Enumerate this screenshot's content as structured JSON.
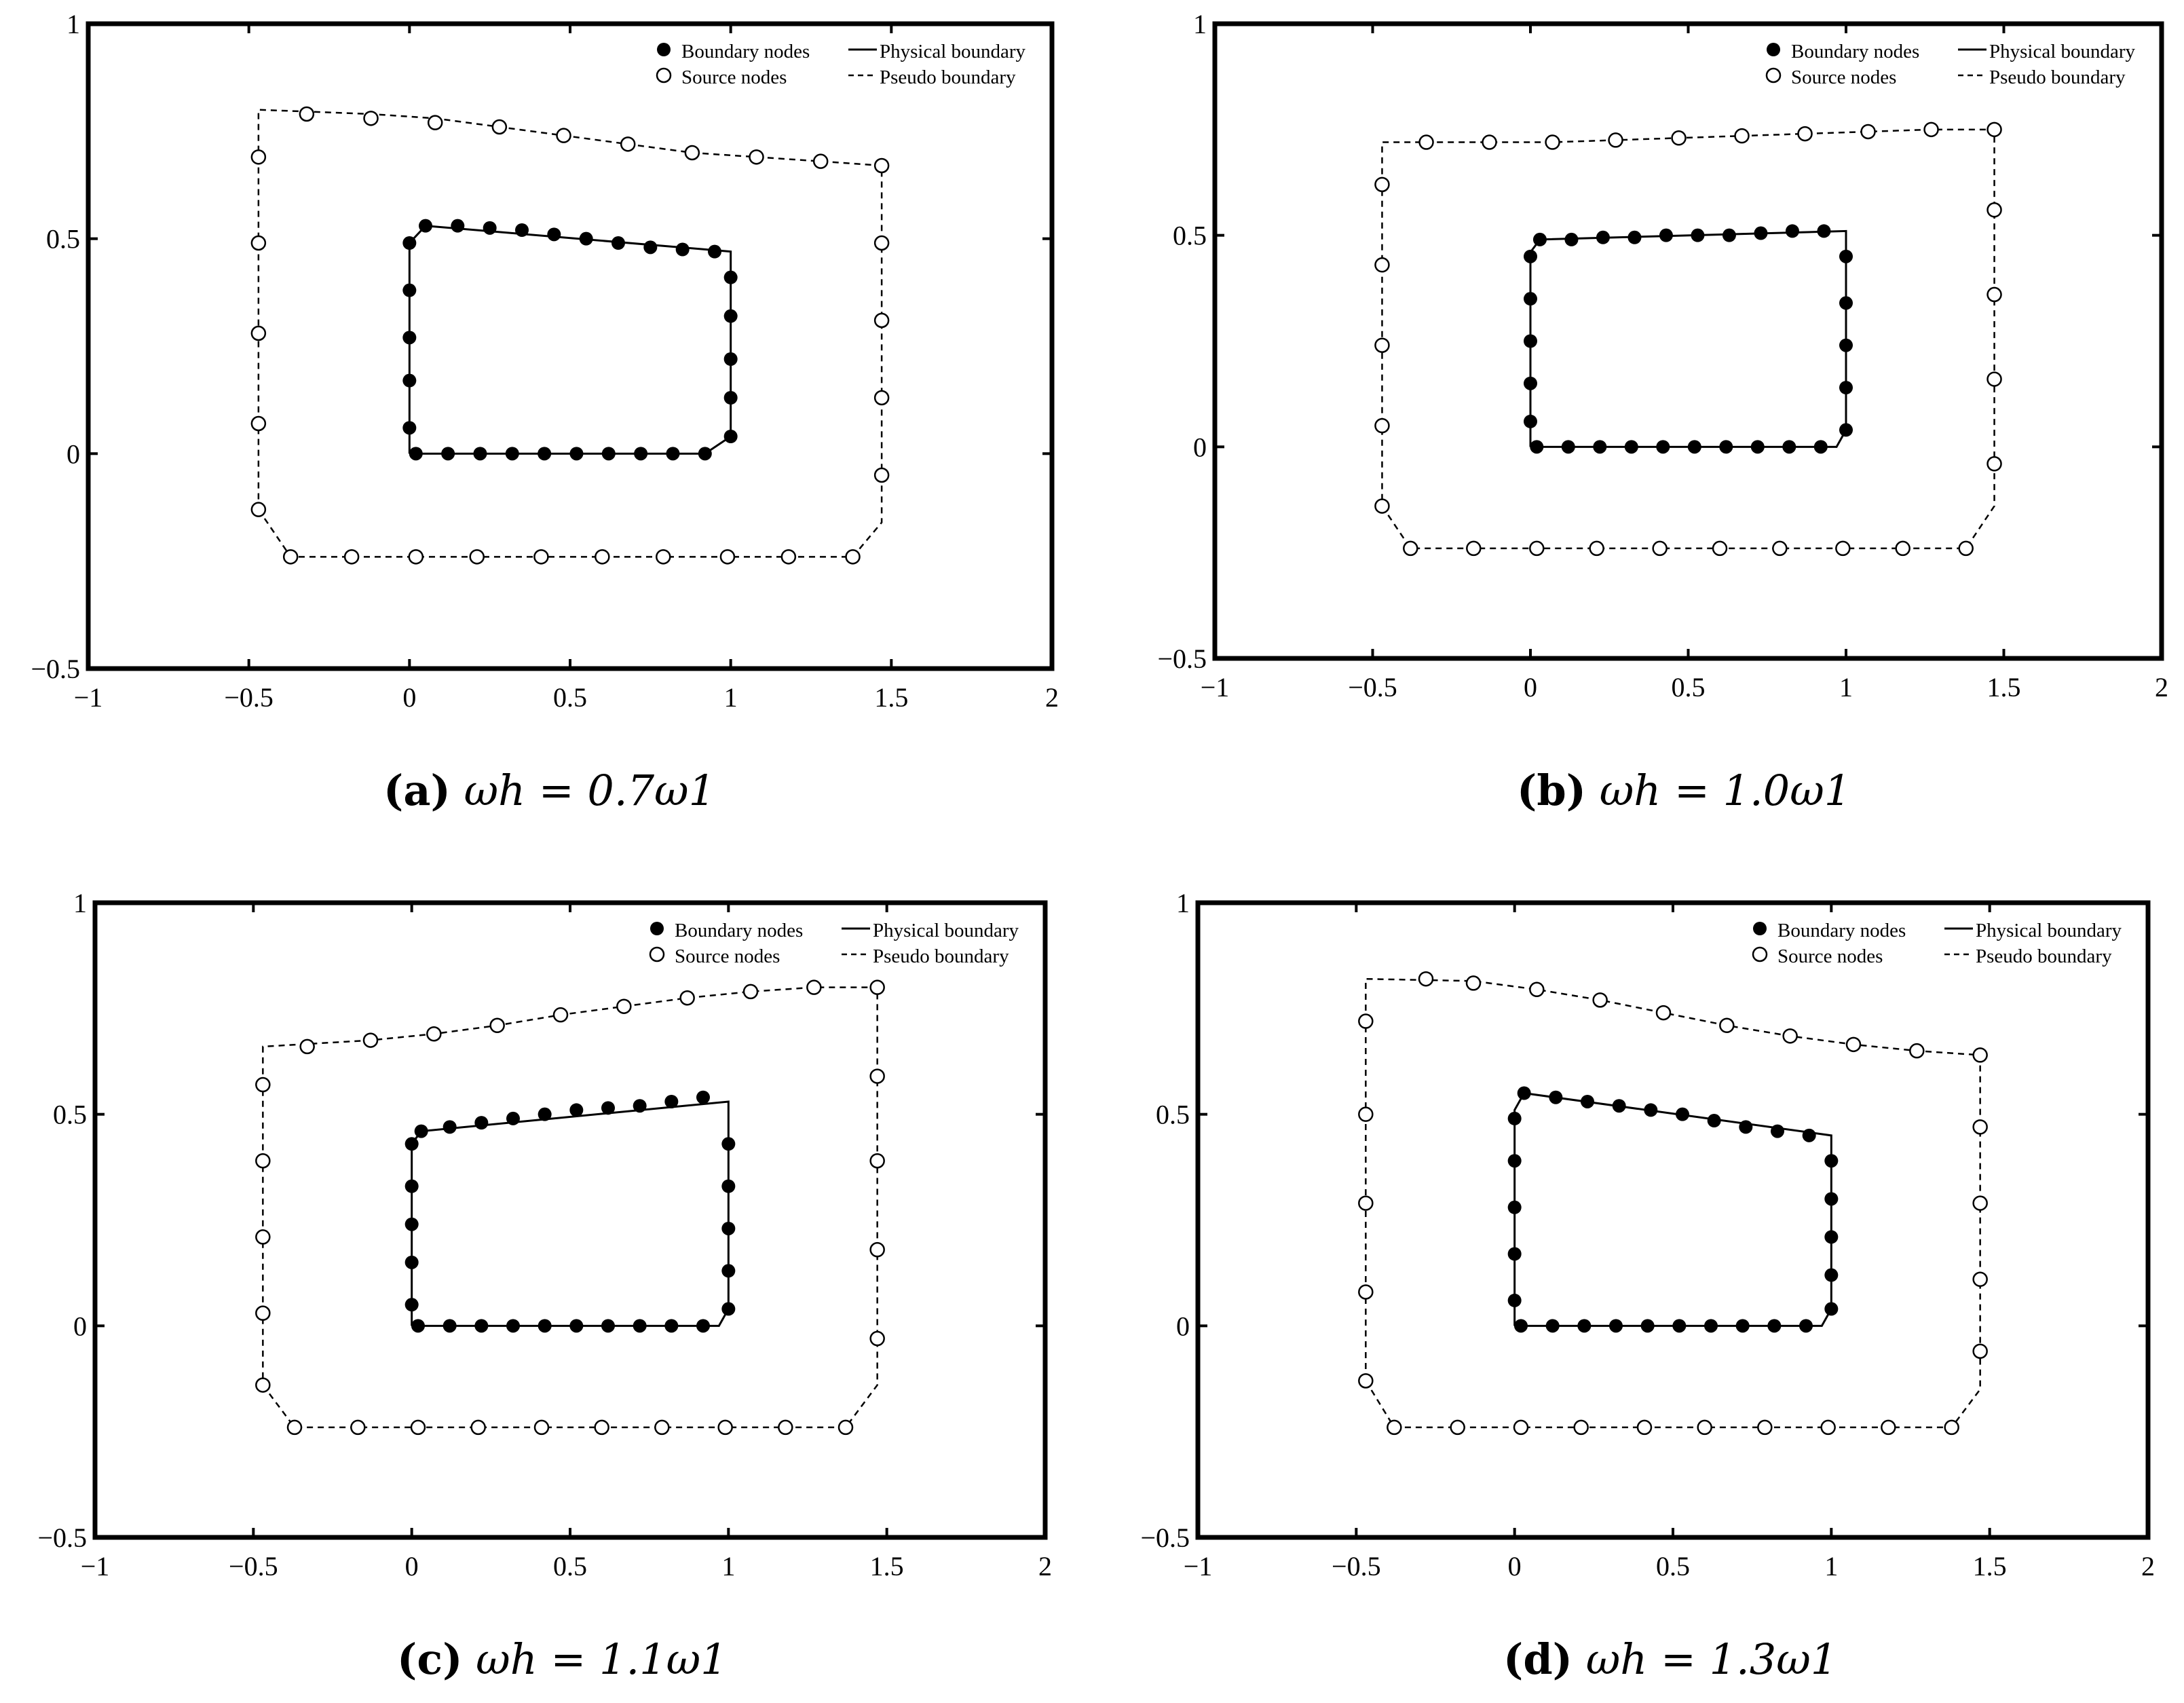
{
  "figure": {
    "legend": {
      "boundary_nodes": "Boundary nodes",
      "source_nodes": "Source nodes",
      "physical_boundary": "Physical boundary",
      "pseudo_boundary": "Pseudo boundary"
    },
    "legend_placement": "top-right",
    "xlim": [
      -1,
      2
    ],
    "ylim": [
      -0.5,
      1
    ],
    "xticks": [
      "−1",
      "−0.5",
      "0",
      "0.5",
      "1",
      "1.5",
      "2"
    ],
    "yticks": [
      "−0.5",
      "0",
      "0.5",
      "1"
    ],
    "colors": {
      "axes": "#000000",
      "markers": "#000000",
      "background": "#ffffff"
    }
  },
  "chart_data": [
    {
      "type": "scatter",
      "caption_label": "(a)",
      "caption_formula": "ωh = 0.7ω1",
      "physical_boundary": [
        [
          0,
          0
        ],
        [
          0.92,
          0
        ],
        [
          1,
          0.04
        ],
        [
          1,
          0.47
        ],
        [
          0.05,
          0.53
        ],
        [
          0,
          0.49
        ],
        [
          0,
          0
        ]
      ],
      "boundary_nodes": [
        [
          0.02,
          0
        ],
        [
          0.12,
          0
        ],
        [
          0.22,
          0
        ],
        [
          0.32,
          0
        ],
        [
          0.42,
          0
        ],
        [
          0.52,
          0
        ],
        [
          0.62,
          0
        ],
        [
          0.72,
          0
        ],
        [
          0.82,
          0
        ],
        [
          0.92,
          0
        ],
        [
          1,
          0.04
        ],
        [
          1,
          0.13
        ],
        [
          1,
          0.22
        ],
        [
          1,
          0.32
        ],
        [
          1,
          0.41
        ],
        [
          0.95,
          0.47
        ],
        [
          0.85,
          0.475
        ],
        [
          0.75,
          0.48
        ],
        [
          0.65,
          0.49
        ],
        [
          0.55,
          0.5
        ],
        [
          0.45,
          0.51
        ],
        [
          0.35,
          0.52
        ],
        [
          0.25,
          0.525
        ],
        [
          0.15,
          0.53
        ],
        [
          0.05,
          0.53
        ],
        [
          0,
          0.49
        ],
        [
          0,
          0.38
        ],
        [
          0,
          0.27
        ],
        [
          0,
          0.17
        ],
        [
          0,
          0.06
        ]
      ],
      "pseudo_boundary": [
        [
          -0.47,
          -0.13
        ],
        [
          -0.37,
          -0.24
        ],
        [
          1.38,
          -0.24
        ],
        [
          1.47,
          -0.16
        ],
        [
          1.47,
          0.67
        ],
        [
          1.28,
          0.68
        ],
        [
          1.08,
          0.69
        ],
        [
          0.88,
          0.7
        ],
        [
          0.68,
          0.72
        ],
        [
          0.48,
          0.74
        ],
        [
          0.28,
          0.76
        ],
        [
          0.08,
          0.78
        ],
        [
          -0.12,
          0.79
        ],
        [
          -0.47,
          0.8
        ],
        [
          -0.47,
          -0.13
        ]
      ],
      "source_nodes": [
        [
          -0.47,
          -0.13
        ],
        [
          -0.37,
          -0.24
        ],
        [
          -0.18,
          -0.24
        ],
        [
          0.02,
          -0.24
        ],
        [
          0.21,
          -0.24
        ],
        [
          0.41,
          -0.24
        ],
        [
          0.6,
          -0.24
        ],
        [
          0.79,
          -0.24
        ],
        [
          0.99,
          -0.24
        ],
        [
          1.18,
          -0.24
        ],
        [
          1.38,
          -0.24
        ],
        [
          1.47,
          -0.05
        ],
        [
          1.47,
          0.13
        ],
        [
          1.47,
          0.31
        ],
        [
          1.47,
          0.49
        ],
        [
          1.47,
          0.67
        ],
        [
          1.28,
          0.68
        ],
        [
          1.08,
          0.69
        ],
        [
          0.88,
          0.7
        ],
        [
          0.68,
          0.72
        ],
        [
          0.48,
          0.74
        ],
        [
          0.28,
          0.76
        ],
        [
          0.08,
          0.77
        ],
        [
          -0.12,
          0.78
        ],
        [
          -0.32,
          0.79
        ],
        [
          -0.47,
          0.69
        ],
        [
          -0.47,
          0.49
        ],
        [
          -0.47,
          0.28
        ],
        [
          -0.47,
          0.07
        ]
      ]
    },
    {
      "type": "scatter",
      "caption_label": "(b)",
      "caption_formula": "ωh = 1.0ω1",
      "physical_boundary": [
        [
          0,
          0
        ],
        [
          0.97,
          0
        ],
        [
          1,
          0.04
        ],
        [
          1,
          0.51
        ],
        [
          0.03,
          0.49
        ],
        [
          0,
          0.46
        ],
        [
          0,
          0
        ]
      ],
      "boundary_nodes": [
        [
          0.02,
          0
        ],
        [
          0.12,
          0
        ],
        [
          0.22,
          0
        ],
        [
          0.32,
          0
        ],
        [
          0.42,
          0
        ],
        [
          0.52,
          0
        ],
        [
          0.62,
          0
        ],
        [
          0.72,
          0
        ],
        [
          0.82,
          0
        ],
        [
          0.92,
          0
        ],
        [
          1,
          0.04
        ],
        [
          1,
          0.14
        ],
        [
          1,
          0.24
        ],
        [
          1,
          0.34
        ],
        [
          1,
          0.45
        ],
        [
          0.93,
          0.51
        ],
        [
          0.83,
          0.51
        ],
        [
          0.73,
          0.505
        ],
        [
          0.63,
          0.5
        ],
        [
          0.53,
          0.5
        ],
        [
          0.43,
          0.5
        ],
        [
          0.33,
          0.495
        ],
        [
          0.23,
          0.495
        ],
        [
          0.13,
          0.49
        ],
        [
          0.03,
          0.49
        ],
        [
          0,
          0.45
        ],
        [
          0,
          0.35
        ],
        [
          0,
          0.25
        ],
        [
          0,
          0.15
        ],
        [
          0,
          0.06
        ]
      ],
      "pseudo_boundary": [
        [
          -0.47,
          -0.14
        ],
        [
          -0.38,
          -0.24
        ],
        [
          1.38,
          -0.24
        ],
        [
          1.47,
          -0.14
        ],
        [
          1.47,
          0.75
        ],
        [
          1.27,
          0.75
        ],
        [
          1.07,
          0.745
        ],
        [
          0.87,
          0.74
        ],
        [
          0.67,
          0.735
        ],
        [
          0.47,
          0.73
        ],
        [
          0.27,
          0.725
        ],
        [
          0.07,
          0.72
        ],
        [
          -0.13,
          0.72
        ],
        [
          -0.47,
          0.72
        ],
        [
          -0.47,
          -0.14
        ]
      ],
      "source_nodes": [
        [
          -0.47,
          -0.14
        ],
        [
          -0.38,
          -0.24
        ],
        [
          -0.18,
          -0.24
        ],
        [
          0.02,
          -0.24
        ],
        [
          0.21,
          -0.24
        ],
        [
          0.41,
          -0.24
        ],
        [
          0.6,
          -0.24
        ],
        [
          0.79,
          -0.24
        ],
        [
          0.99,
          -0.24
        ],
        [
          1.18,
          -0.24
        ],
        [
          1.38,
          -0.24
        ],
        [
          1.47,
          -0.04
        ],
        [
          1.47,
          0.16
        ],
        [
          1.47,
          0.36
        ],
        [
          1.47,
          0.56
        ],
        [
          1.47,
          0.75
        ],
        [
          1.27,
          0.75
        ],
        [
          1.07,
          0.745
        ],
        [
          0.87,
          0.74
        ],
        [
          0.67,
          0.735
        ],
        [
          0.47,
          0.73
        ],
        [
          0.27,
          0.725
        ],
        [
          0.07,
          0.72
        ],
        [
          -0.13,
          0.72
        ],
        [
          -0.33,
          0.72
        ],
        [
          -0.47,
          0.62
        ],
        [
          -0.47,
          0.43
        ],
        [
          -0.47,
          0.24
        ],
        [
          -0.47,
          0.05
        ]
      ]
    },
    {
      "type": "scatter",
      "caption_label": "(c)",
      "caption_formula": "ωh = 1.1ω1",
      "physical_boundary": [
        [
          0,
          0
        ],
        [
          0.97,
          0
        ],
        [
          1,
          0.04
        ],
        [
          1,
          0.53
        ],
        [
          0.03,
          0.46
        ],
        [
          0,
          0.43
        ],
        [
          0,
          0
        ]
      ],
      "boundary_nodes": [
        [
          0.02,
          0
        ],
        [
          0.12,
          0
        ],
        [
          0.22,
          0
        ],
        [
          0.32,
          0
        ],
        [
          0.42,
          0
        ],
        [
          0.52,
          0
        ],
        [
          0.62,
          0
        ],
        [
          0.72,
          0
        ],
        [
          0.82,
          0
        ],
        [
          0.92,
          0
        ],
        [
          1,
          0.04
        ],
        [
          1,
          0.13
        ],
        [
          1,
          0.23
        ],
        [
          1,
          0.33
        ],
        [
          1,
          0.43
        ],
        [
          0.92,
          0.54
        ],
        [
          0.82,
          0.53
        ],
        [
          0.72,
          0.52
        ],
        [
          0.62,
          0.515
        ],
        [
          0.52,
          0.51
        ],
        [
          0.42,
          0.5
        ],
        [
          0.32,
          0.49
        ],
        [
          0.22,
          0.48
        ],
        [
          0.12,
          0.47
        ],
        [
          0.03,
          0.46
        ],
        [
          0,
          0.43
        ],
        [
          0,
          0.33
        ],
        [
          0,
          0.24
        ],
        [
          0,
          0.15
        ],
        [
          0,
          0.05
        ]
      ],
      "pseudo_boundary": [
        [
          -0.47,
          -0.14
        ],
        [
          -0.37,
          -0.24
        ],
        [
          1.37,
          -0.24
        ],
        [
          1.47,
          -0.14
        ],
        [
          1.47,
          0.8
        ],
        [
          1.27,
          0.8
        ],
        [
          1.07,
          0.79
        ],
        [
          0.87,
          0.775
        ],
        [
          0.67,
          0.755
        ],
        [
          0.47,
          0.735
        ],
        [
          0.27,
          0.71
        ],
        [
          0.07,
          0.69
        ],
        [
          -0.13,
          0.675
        ],
        [
          -0.47,
          0.66
        ],
        [
          -0.47,
          -0.14
        ]
      ],
      "source_nodes": [
        [
          -0.47,
          -0.14
        ],
        [
          -0.37,
          -0.24
        ],
        [
          -0.17,
          -0.24
        ],
        [
          0.02,
          -0.24
        ],
        [
          0.21,
          -0.24
        ],
        [
          0.41,
          -0.24
        ],
        [
          0.6,
          -0.24
        ],
        [
          0.79,
          -0.24
        ],
        [
          0.99,
          -0.24
        ],
        [
          1.18,
          -0.24
        ],
        [
          1.37,
          -0.24
        ],
        [
          1.47,
          -0.03
        ],
        [
          1.47,
          0.18
        ],
        [
          1.47,
          0.39
        ],
        [
          1.47,
          0.59
        ],
        [
          1.47,
          0.8
        ],
        [
          1.27,
          0.8
        ],
        [
          1.07,
          0.79
        ],
        [
          0.87,
          0.775
        ],
        [
          0.67,
          0.755
        ],
        [
          0.47,
          0.735
        ],
        [
          0.27,
          0.71
        ],
        [
          0.07,
          0.69
        ],
        [
          -0.13,
          0.675
        ],
        [
          -0.33,
          0.66
        ],
        [
          -0.47,
          0.57
        ],
        [
          -0.47,
          0.39
        ],
        [
          -0.47,
          0.21
        ],
        [
          -0.47,
          0.03
        ]
      ]
    },
    {
      "type": "scatter",
      "caption_label": "(d)",
      "caption_formula": "ωh = 1.3ω1",
      "physical_boundary": [
        [
          0,
          0
        ],
        [
          0.97,
          0
        ],
        [
          1,
          0.04
        ],
        [
          1,
          0.45
        ],
        [
          0.03,
          0.55
        ],
        [
          0,
          0.51
        ],
        [
          0,
          0
        ]
      ],
      "boundary_nodes": [
        [
          0.02,
          0
        ],
        [
          0.12,
          0
        ],
        [
          0.22,
          0
        ],
        [
          0.32,
          0
        ],
        [
          0.42,
          0
        ],
        [
          0.52,
          0
        ],
        [
          0.62,
          0
        ],
        [
          0.72,
          0
        ],
        [
          0.82,
          0
        ],
        [
          0.92,
          0
        ],
        [
          1,
          0.04
        ],
        [
          1,
          0.12
        ],
        [
          1,
          0.21
        ],
        [
          1,
          0.3
        ],
        [
          1,
          0.39
        ],
        [
          0.93,
          0.45
        ],
        [
          0.83,
          0.46
        ],
        [
          0.73,
          0.47
        ],
        [
          0.63,
          0.485
        ],
        [
          0.53,
          0.5
        ],
        [
          0.43,
          0.51
        ],
        [
          0.33,
          0.52
        ],
        [
          0.23,
          0.53
        ],
        [
          0.13,
          0.54
        ],
        [
          0.03,
          0.55
        ],
        [
          0,
          0.49
        ],
        [
          0,
          0.39
        ],
        [
          0,
          0.28
        ],
        [
          0,
          0.17
        ],
        [
          0,
          0.06
        ]
      ],
      "pseudo_boundary": [
        [
          -0.47,
          -0.13
        ],
        [
          -0.38,
          -0.24
        ],
        [
          1.38,
          -0.24
        ],
        [
          1.47,
          -0.15
        ],
        [
          1.47,
          0.64
        ],
        [
          1.27,
          0.65
        ],
        [
          1.07,
          0.665
        ],
        [
          0.87,
          0.685
        ],
        [
          0.67,
          0.71
        ],
        [
          0.47,
          0.74
        ],
        [
          0.27,
          0.77
        ],
        [
          0.07,
          0.795
        ],
        [
          -0.13,
          0.815
        ],
        [
          -0.47,
          0.82
        ],
        [
          -0.47,
          -0.13
        ]
      ],
      "source_nodes": [
        [
          -0.47,
          -0.13
        ],
        [
          -0.38,
          -0.24
        ],
        [
          -0.18,
          -0.24
        ],
        [
          0.02,
          -0.24
        ],
        [
          0.21,
          -0.24
        ],
        [
          0.41,
          -0.24
        ],
        [
          0.6,
          -0.24
        ],
        [
          0.79,
          -0.24
        ],
        [
          0.99,
          -0.24
        ],
        [
          1.18,
          -0.24
        ],
        [
          1.38,
          -0.24
        ],
        [
          1.47,
          -0.06
        ],
        [
          1.47,
          0.11
        ],
        [
          1.47,
          0.29
        ],
        [
          1.47,
          0.47
        ],
        [
          1.47,
          0.64
        ],
        [
          1.27,
          0.65
        ],
        [
          1.07,
          0.665
        ],
        [
          0.87,
          0.685
        ],
        [
          0.67,
          0.71
        ],
        [
          0.47,
          0.74
        ],
        [
          0.27,
          0.77
        ],
        [
          0.07,
          0.795
        ],
        [
          -0.13,
          0.81
        ],
        [
          -0.28,
          0.82
        ],
        [
          -0.47,
          0.72
        ],
        [
          -0.47,
          0.5
        ],
        [
          -0.47,
          0.29
        ],
        [
          -0.47,
          0.08
        ]
      ]
    }
  ]
}
